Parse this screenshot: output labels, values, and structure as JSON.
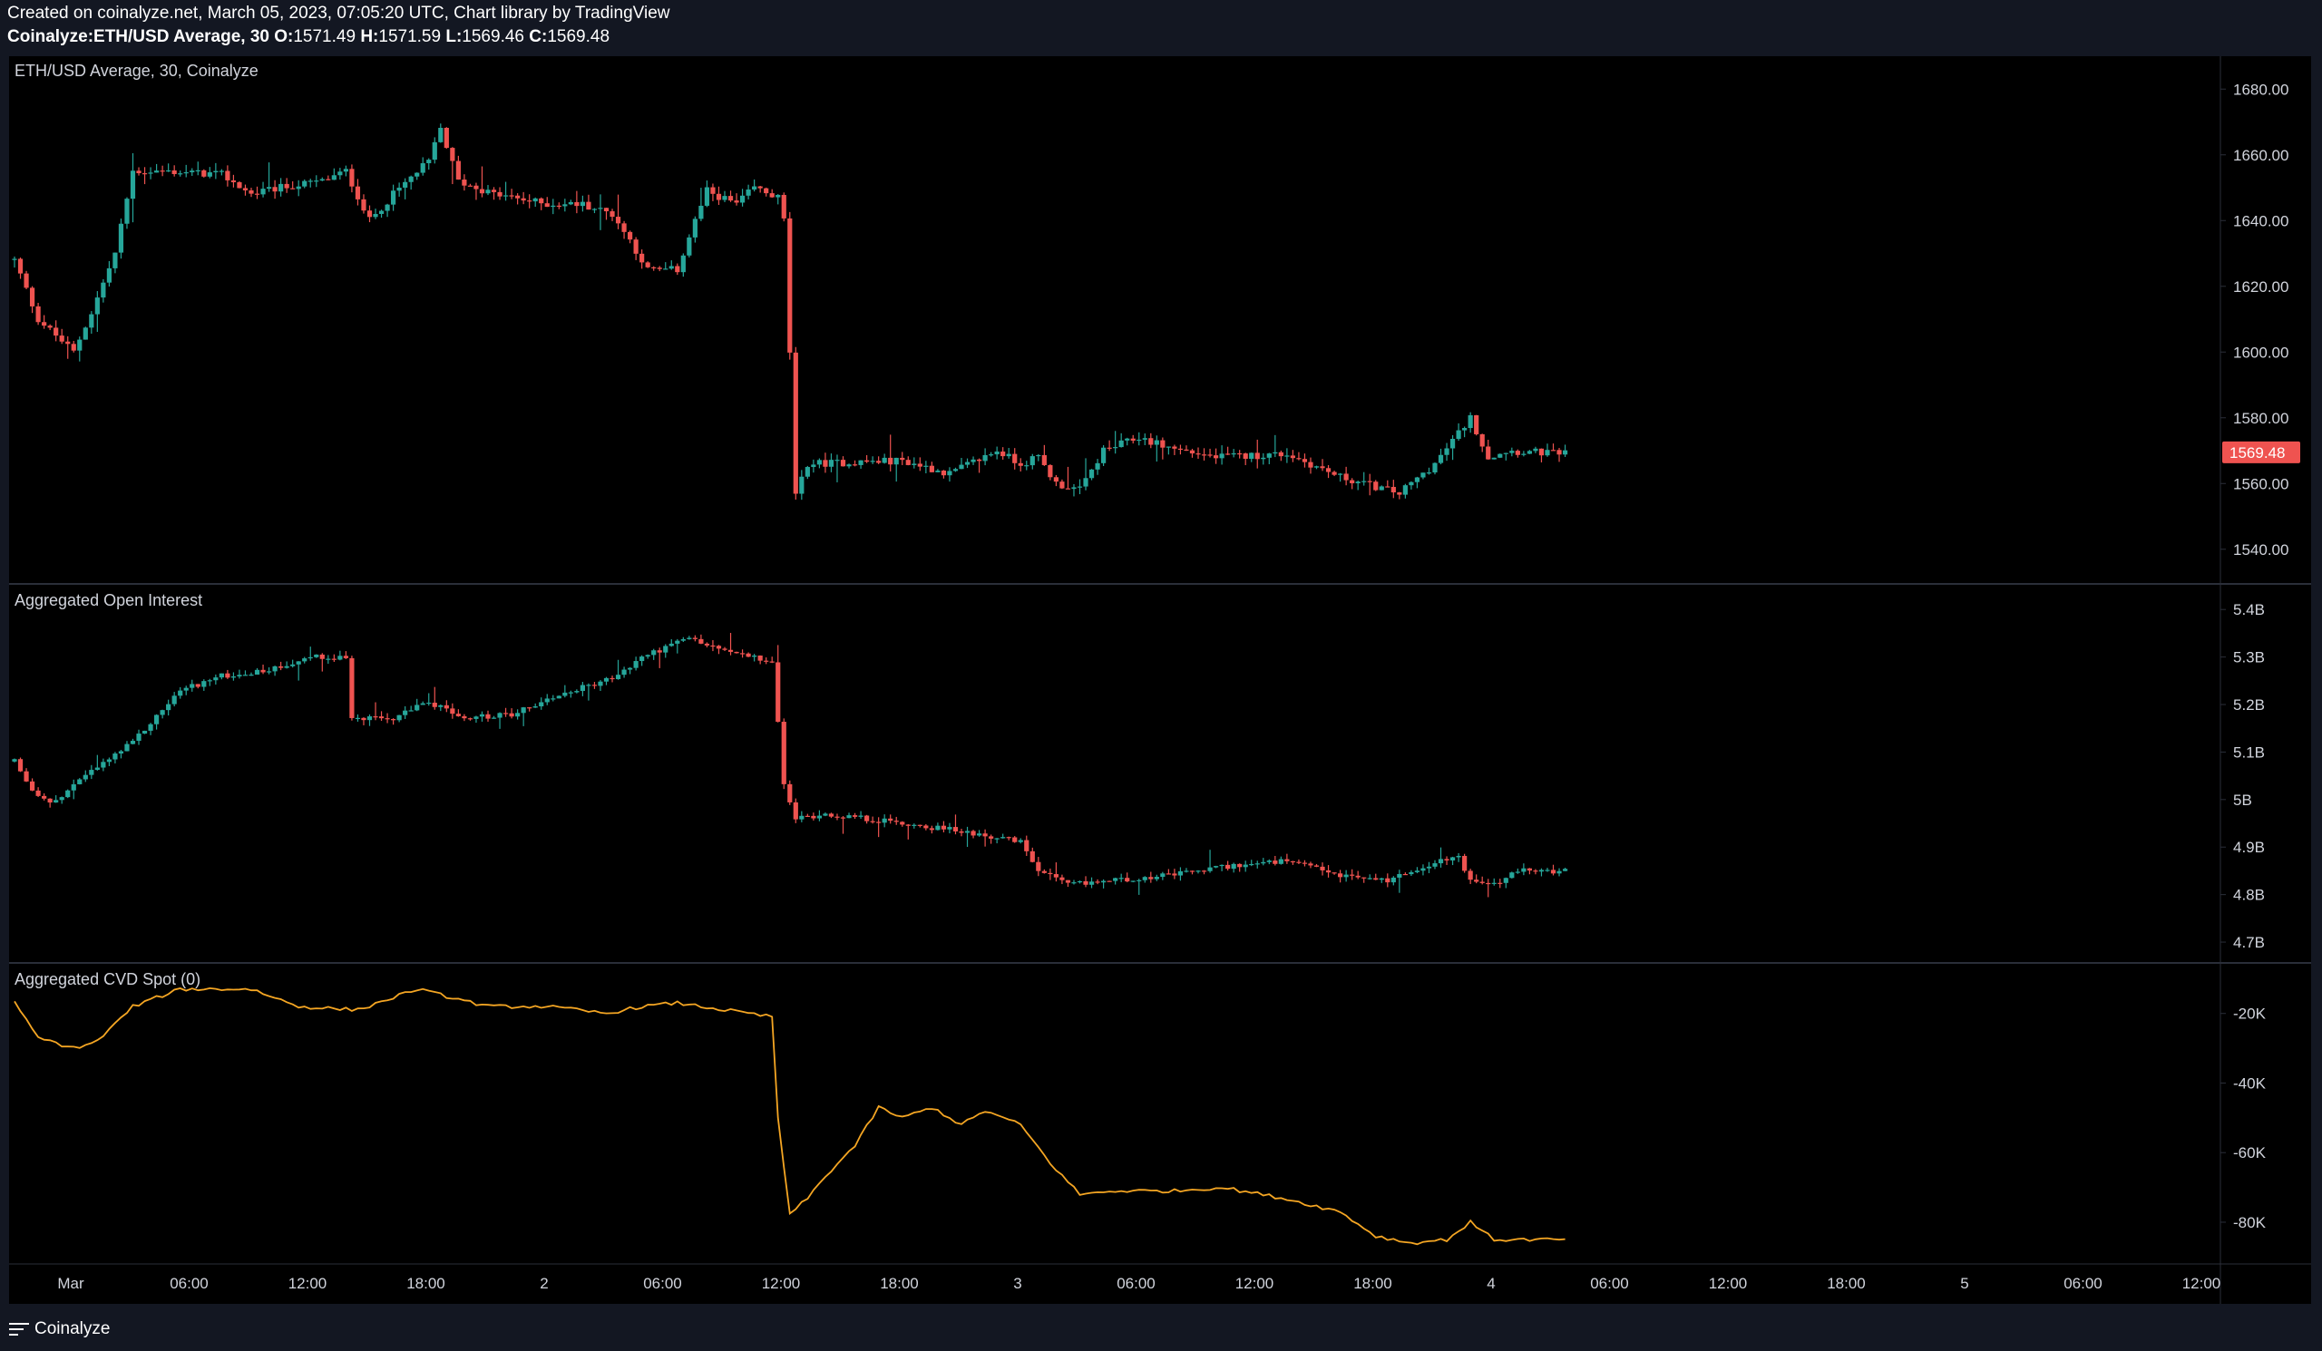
{
  "header": {
    "line1": "Created on coinalyze.net, March 05, 2023, 07:05:20 UTC, Chart library by TradingView",
    "symbol": "Coinalyze:ETH/USD Average, 30",
    "o_label": "O:",
    "o": "1571.49",
    "h_label": "H:",
    "h": "1571.59",
    "l_label": "L:",
    "l": "1569.46",
    "c_label": "C:",
    "c": "1569.48"
  },
  "footer": {
    "brand": "Coinalyze"
  },
  "colors": {
    "bg": "#000000",
    "up": "#26a69a",
    "down": "#ef5350",
    "cvd": "#f5a623",
    "grid": "#2a2e39",
    "text": "#d1d4dc",
    "last_badge": "#ef5350"
  },
  "chart_data": [
    {
      "type": "candlestick",
      "title": "ETH/USD Average, 30, Coinalyze",
      "ylim": [
        1530,
        1690
      ],
      "yticks": [
        "1680.00",
        "1660.00",
        "1640.00",
        "1620.00",
        "1600.00",
        "1580.00",
        "1560.00",
        "1540.00"
      ],
      "last_value": "1569.48",
      "anchors": [
        [
          0,
          1628
        ],
        [
          4,
          1610
        ],
        [
          10,
          1600
        ],
        [
          13,
          1612
        ],
        [
          17,
          1630
        ],
        [
          20,
          1655
        ],
        [
          25,
          1655
        ],
        [
          35,
          1654
        ],
        [
          40,
          1648
        ],
        [
          45,
          1650
        ],
        [
          52,
          1652
        ],
        [
          56,
          1655
        ],
        [
          60,
          1640
        ],
        [
          64,
          1648
        ],
        [
          70,
          1658
        ],
        [
          72,
          1668
        ],
        [
          75,
          1652
        ],
        [
          81,
          1648
        ],
        [
          90,
          1645
        ],
        [
          96,
          1645
        ],
        [
          101,
          1642
        ],
        [
          104,
          1634
        ],
        [
          107,
          1625
        ],
        [
          112,
          1625
        ],
        [
          115,
          1640
        ],
        [
          117,
          1649
        ],
        [
          122,
          1645
        ],
        [
          125,
          1650
        ],
        [
          129,
          1647
        ],
        [
          130,
          1640
        ],
        [
          131,
          1600
        ],
        [
          132,
          1556
        ],
        [
          134,
          1566
        ],
        [
          150,
          1567
        ],
        [
          158,
          1563
        ],
        [
          166,
          1570
        ],
        [
          170,
          1566
        ],
        [
          173,
          1568
        ],
        [
          176,
          1560
        ],
        [
          180,
          1558
        ],
        [
          184,
          1570
        ],
        [
          190,
          1574
        ],
        [
          195,
          1571
        ],
        [
          203,
          1568
        ],
        [
          215,
          1569
        ],
        [
          224,
          1562
        ],
        [
          234,
          1557
        ],
        [
          240,
          1566
        ],
        [
          246,
          1580
        ],
        [
          249,
          1568
        ],
        [
          252,
          1570
        ],
        [
          262,
          1569
        ]
      ]
    },
    {
      "type": "candlestick",
      "title": "Aggregated Open Interest",
      "ylim": [
        4.66,
        5.45
      ],
      "yticks": [
        "5.4B",
        "5.3B",
        "5.2B",
        "5.1B",
        "5B",
        "4.9B",
        "4.8B",
        "4.7B"
      ],
      "anchors": [
        [
          0,
          5.08
        ],
        [
          3,
          5.02
        ],
        [
          6,
          4.99
        ],
        [
          12,
          5.05
        ],
        [
          20,
          5.12
        ],
        [
          28,
          5.23
        ],
        [
          35,
          5.26
        ],
        [
          42,
          5.27
        ],
        [
          50,
          5.3
        ],
        [
          56,
          5.3
        ],
        [
          57,
          5.17
        ],
        [
          64,
          5.17
        ],
        [
          69,
          5.2
        ],
        [
          72,
          5.2
        ],
        [
          75,
          5.17
        ],
        [
          84,
          5.18
        ],
        [
          92,
          5.22
        ],
        [
          102,
          5.26
        ],
        [
          106,
          5.3
        ],
        [
          110,
          5.32
        ],
        [
          114,
          5.34
        ],
        [
          118,
          5.32
        ],
        [
          124,
          5.3
        ],
        [
          128,
          5.29
        ],
        [
          129,
          5.16
        ],
        [
          130,
          5.03
        ],
        [
          132,
          4.96
        ],
        [
          137,
          4.97
        ],
        [
          150,
          4.95
        ],
        [
          162,
          4.93
        ],
        [
          170,
          4.91
        ],
        [
          173,
          4.85
        ],
        [
          178,
          4.82
        ],
        [
          185,
          4.83
        ],
        [
          195,
          4.84
        ],
        [
          205,
          4.86
        ],
        [
          215,
          4.87
        ],
        [
          224,
          4.84
        ],
        [
          232,
          4.83
        ],
        [
          238,
          4.86
        ],
        [
          244,
          4.88
        ],
        [
          246,
          4.83
        ],
        [
          250,
          4.82
        ],
        [
          254,
          4.85
        ],
        [
          262,
          4.85
        ]
      ]
    },
    {
      "type": "line",
      "title": "Aggregated CVD Spot (0)",
      "ylim": [
        -92,
        -6
      ],
      "yticks": [
        "-20K",
        "-40K",
        "-60K",
        "-80K"
      ],
      "anchors": [
        [
          0,
          -17
        ],
        [
          4,
          -27
        ],
        [
          10,
          -30
        ],
        [
          14,
          -28
        ],
        [
          20,
          -18
        ],
        [
          28,
          -13
        ],
        [
          40,
          -13
        ],
        [
          48,
          -18
        ],
        [
          58,
          -19
        ],
        [
          68,
          -13
        ],
        [
          80,
          -18
        ],
        [
          90,
          -18
        ],
        [
          100,
          -20
        ],
        [
          106,
          -18
        ],
        [
          112,
          -17
        ],
        [
          120,
          -19
        ],
        [
          128,
          -21
        ],
        [
          129,
          -50
        ],
        [
          131,
          -78
        ],
        [
          134,
          -73
        ],
        [
          138,
          -65
        ],
        [
          142,
          -58
        ],
        [
          146,
          -47
        ],
        [
          150,
          -50
        ],
        [
          155,
          -47
        ],
        [
          160,
          -52
        ],
        [
          164,
          -48
        ],
        [
          170,
          -52
        ],
        [
          175,
          -63
        ],
        [
          180,
          -72
        ],
        [
          186,
          -71
        ],
        [
          196,
          -71
        ],
        [
          204,
          -70
        ],
        [
          214,
          -73
        ],
        [
          224,
          -77
        ],
        [
          230,
          -84
        ],
        [
          236,
          -86
        ],
        [
          242,
          -85
        ],
        [
          246,
          -80
        ],
        [
          250,
          -85
        ],
        [
          262,
          -85
        ]
      ]
    }
  ],
  "xaxis": {
    "labels": [
      "Mar",
      "06:00",
      "12:00",
      "18:00",
      "2",
      "06:00",
      "12:00",
      "18:00",
      "3",
      "06:00",
      "12:00",
      "18:00",
      "4",
      "06:00",
      "12:00",
      "18:00",
      "5",
      "06:00",
      "12:00"
    ]
  }
}
